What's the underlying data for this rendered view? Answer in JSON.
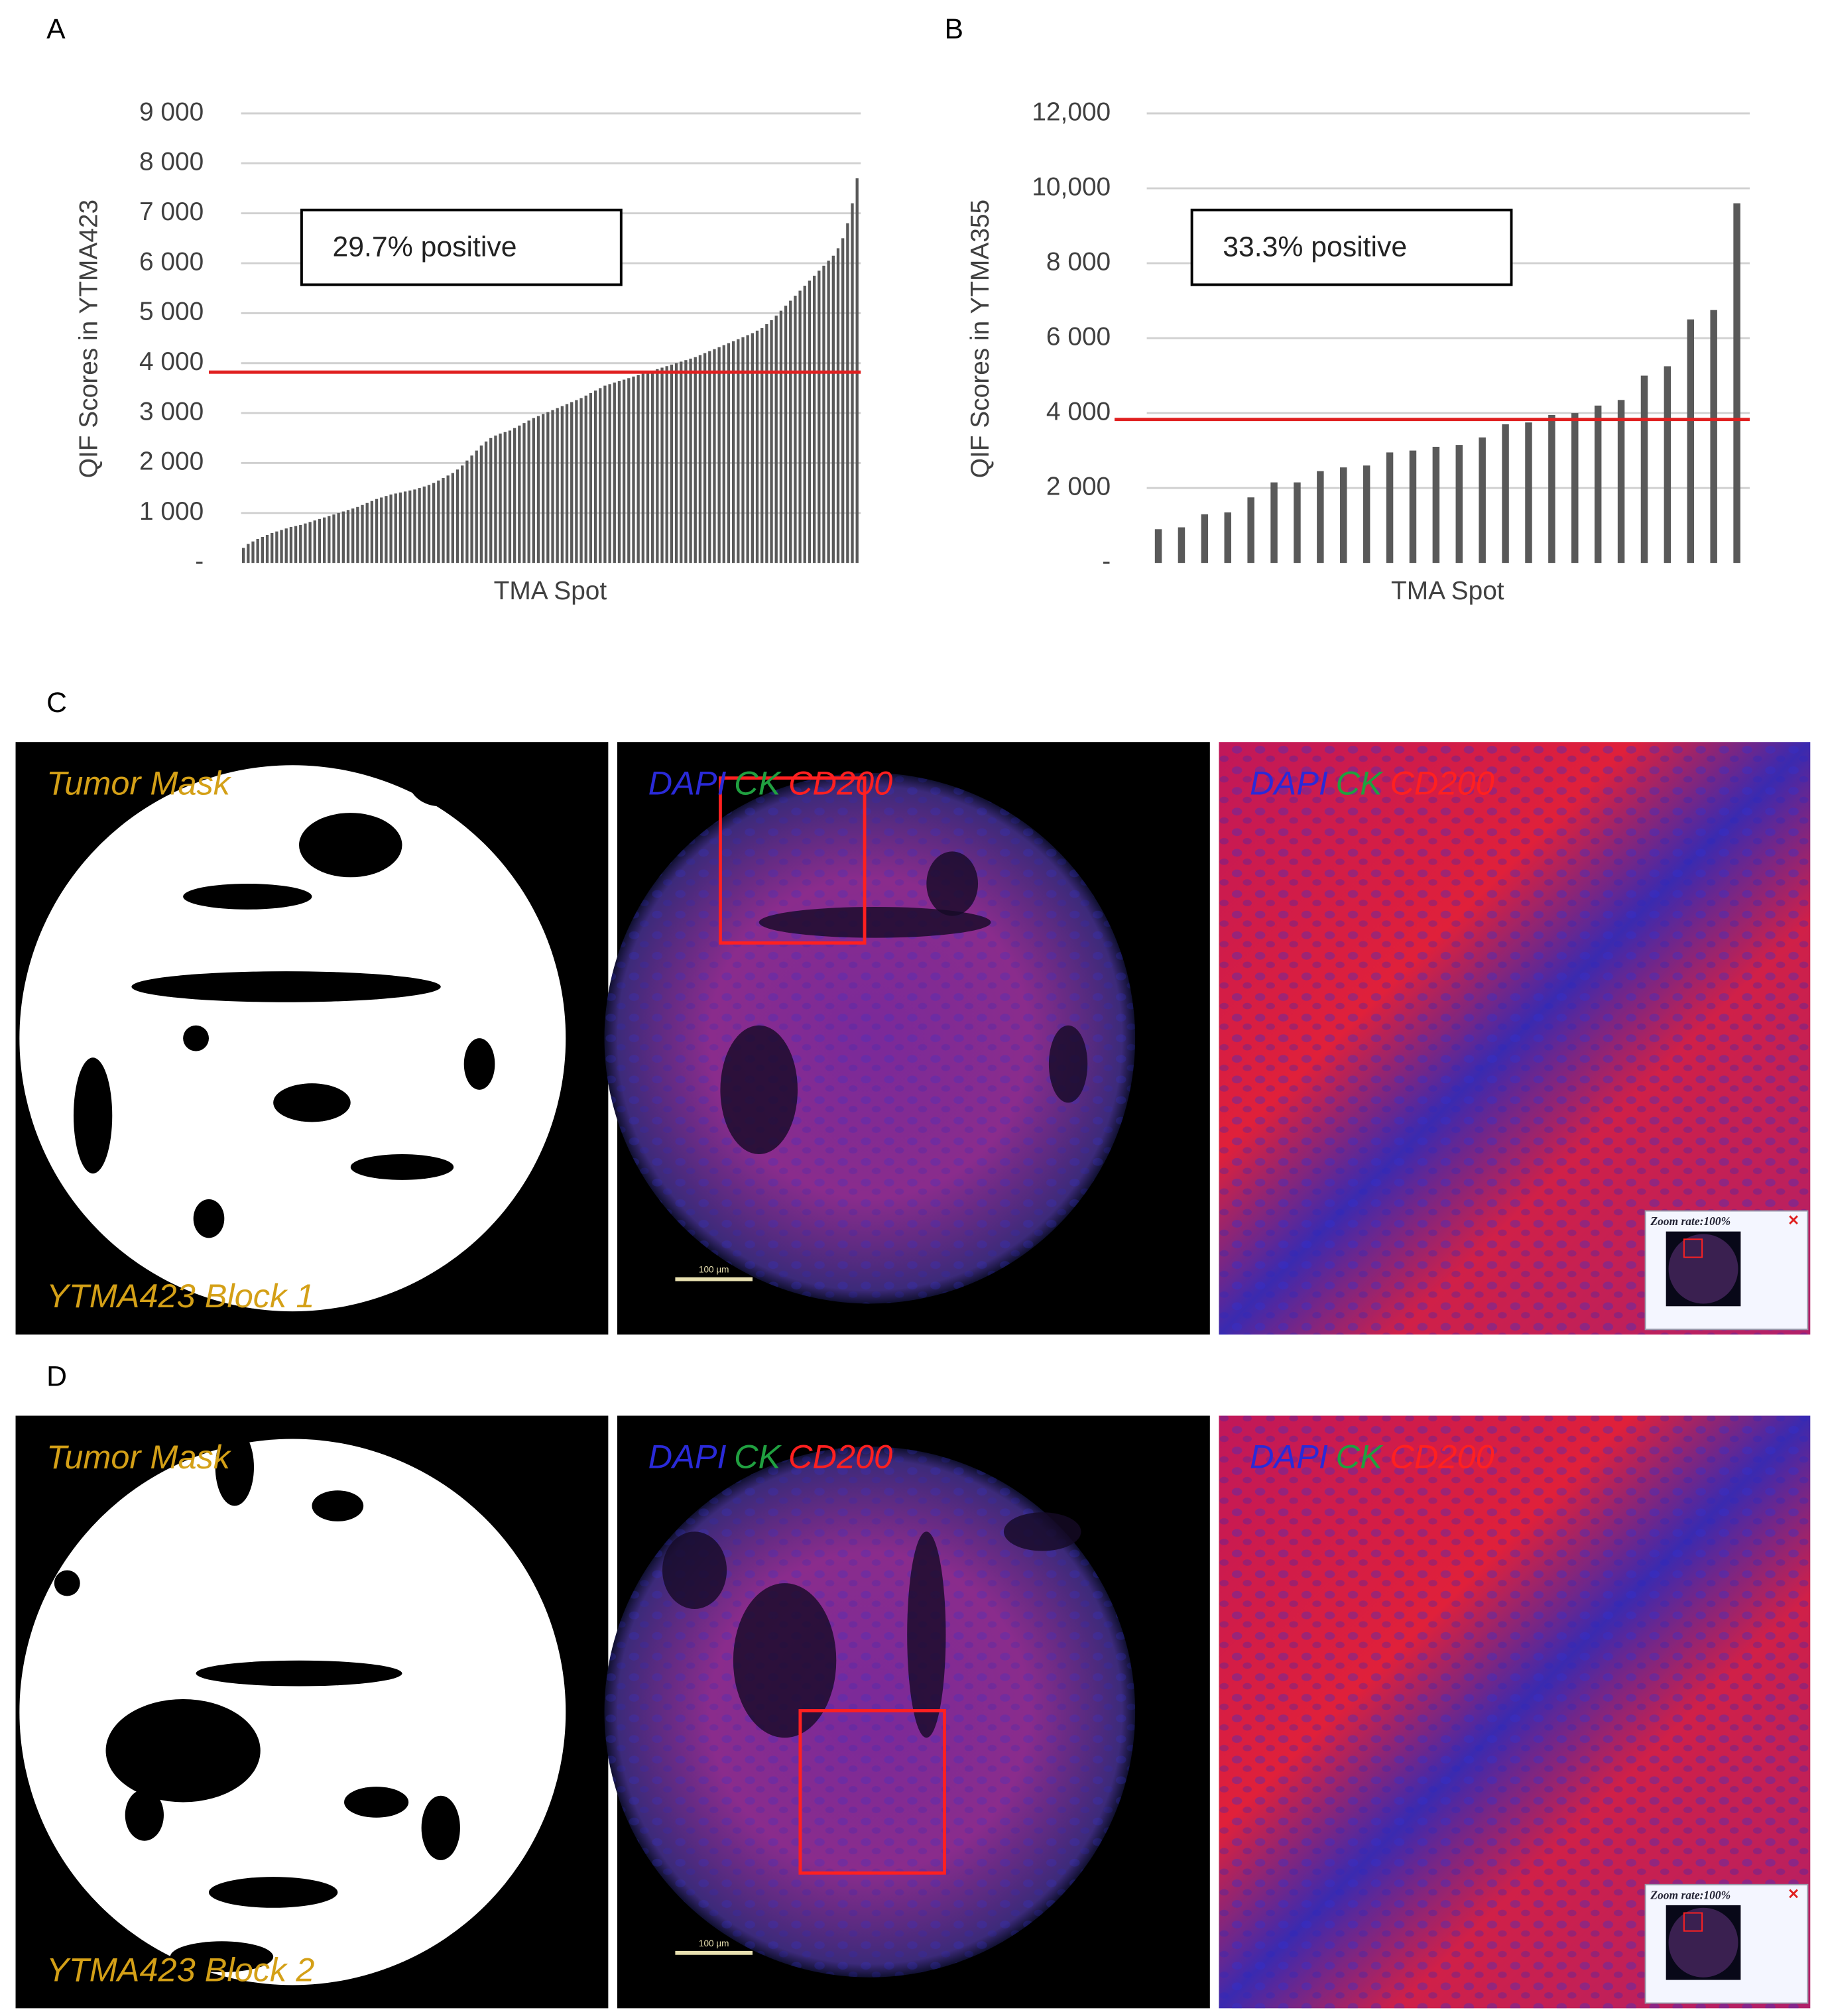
{
  "chart_data": [
    {
      "type": "bar",
      "panel_label": "A",
      "ylabel": "QIF Scores in YTMA423",
      "xlabel": "TMA Spot",
      "annotation": "29.7% positive",
      "threshold": 3820,
      "threshold_color": "#e02020",
      "color": "#595959",
      "grid": true,
      "ylim": [
        0,
        9000
      ],
      "yticks": [
        {
          "value": 0,
          "label": "-"
        },
        {
          "value": 1000,
          "label": "1 000"
        },
        {
          "value": 2000,
          "label": "2 000"
        },
        {
          "value": 3000,
          "label": "3 000"
        },
        {
          "value": 4000,
          "label": "4 000"
        },
        {
          "value": 5000,
          "label": "5 000"
        },
        {
          "value": 6000,
          "label": "6 000"
        },
        {
          "value": 7000,
          "label": "7 000"
        },
        {
          "value": 8000,
          "label": "8 000"
        },
        {
          "value": 9000,
          "label": "9 000"
        }
      ],
      "values": [
        300,
        380,
        430,
        480,
        520,
        560,
        600,
        630,
        660,
        690,
        720,
        740,
        760,
        790,
        820,
        850,
        880,
        910,
        940,
        970,
        1000,
        1030,
        1060,
        1090,
        1120,
        1160,
        1200,
        1240,
        1280,
        1310,
        1340,
        1370,
        1390,
        1410,
        1430,
        1450,
        1470,
        1500,
        1530,
        1560,
        1600,
        1650,
        1700,
        1750,
        1800,
        1870,
        1950,
        2050,
        2150,
        2250,
        2350,
        2430,
        2500,
        2550,
        2590,
        2620,
        2650,
        2700,
        2750,
        2800,
        2850,
        2900,
        2940,
        2980,
        3020,
        3060,
        3100,
        3140,
        3180,
        3220,
        3260,
        3300,
        3350,
        3400,
        3450,
        3500,
        3550,
        3580,
        3610,
        3640,
        3670,
        3700,
        3730,
        3760,
        3790,
        3820,
        3850,
        3880,
        3910,
        3940,
        3970,
        4000,
        4030,
        4060,
        4090,
        4120,
        4160,
        4200,
        4240,
        4280,
        4320,
        4360,
        4400,
        4440,
        4480,
        4520,
        4560,
        4600,
        4650,
        4700,
        4780,
        4860,
        4950,
        5050,
        5150,
        5250,
        5350,
        5450,
        5550,
        5650,
        5750,
        5850,
        5950,
        6050,
        6150,
        6300,
        6500,
        6800,
        7200,
        7700
      ]
    },
    {
      "type": "bar",
      "panel_label": "B",
      "ylabel": "QIF Scores in YTMA355",
      "xlabel": "TMA Spot",
      "annotation": "33.3% positive",
      "threshold": 3830,
      "threshold_color": "#e02020",
      "color": "#595959",
      "grid": true,
      "ylim": [
        0,
        12000
      ],
      "yticks": [
        {
          "value": 0,
          "label": "-"
        },
        {
          "value": 2000,
          "label": "2 000"
        },
        {
          "value": 4000,
          "label": "4 000"
        },
        {
          "value": 6000,
          "label": "6 000"
        },
        {
          "value": 8000,
          "label": "8 000"
        },
        {
          "value": 10000,
          "label": "10,000"
        },
        {
          "value": 12000,
          "label": "12,000"
        }
      ],
      "values": [
        900,
        950,
        1300,
        1350,
        1750,
        2150,
        2150,
        2450,
        2550,
        2600,
        2950,
        3000,
        3100,
        3150,
        3350,
        3700,
        3750,
        3950,
        4000,
        4200,
        4350,
        5000,
        5250,
        6500,
        6750,
        9600
      ]
    }
  ],
  "image_rows": [
    {
      "label": "C",
      "mask_label": "Tumor Mask",
      "block_label": "YTMA423 Block 1",
      "channels": [
        "DAPI",
        "CK",
        "CD200"
      ],
      "scale_bar": "100 µm",
      "zoom_label": "Zoom rate:100%"
    },
    {
      "label": "D",
      "mask_label": "Tumor Mask",
      "block_label": "YTMA423 Block 2",
      "channels": [
        "DAPI",
        "CK",
        "CD200"
      ],
      "scale_bar": "100 µm",
      "zoom_label": "Zoom rate:100%"
    }
  ]
}
